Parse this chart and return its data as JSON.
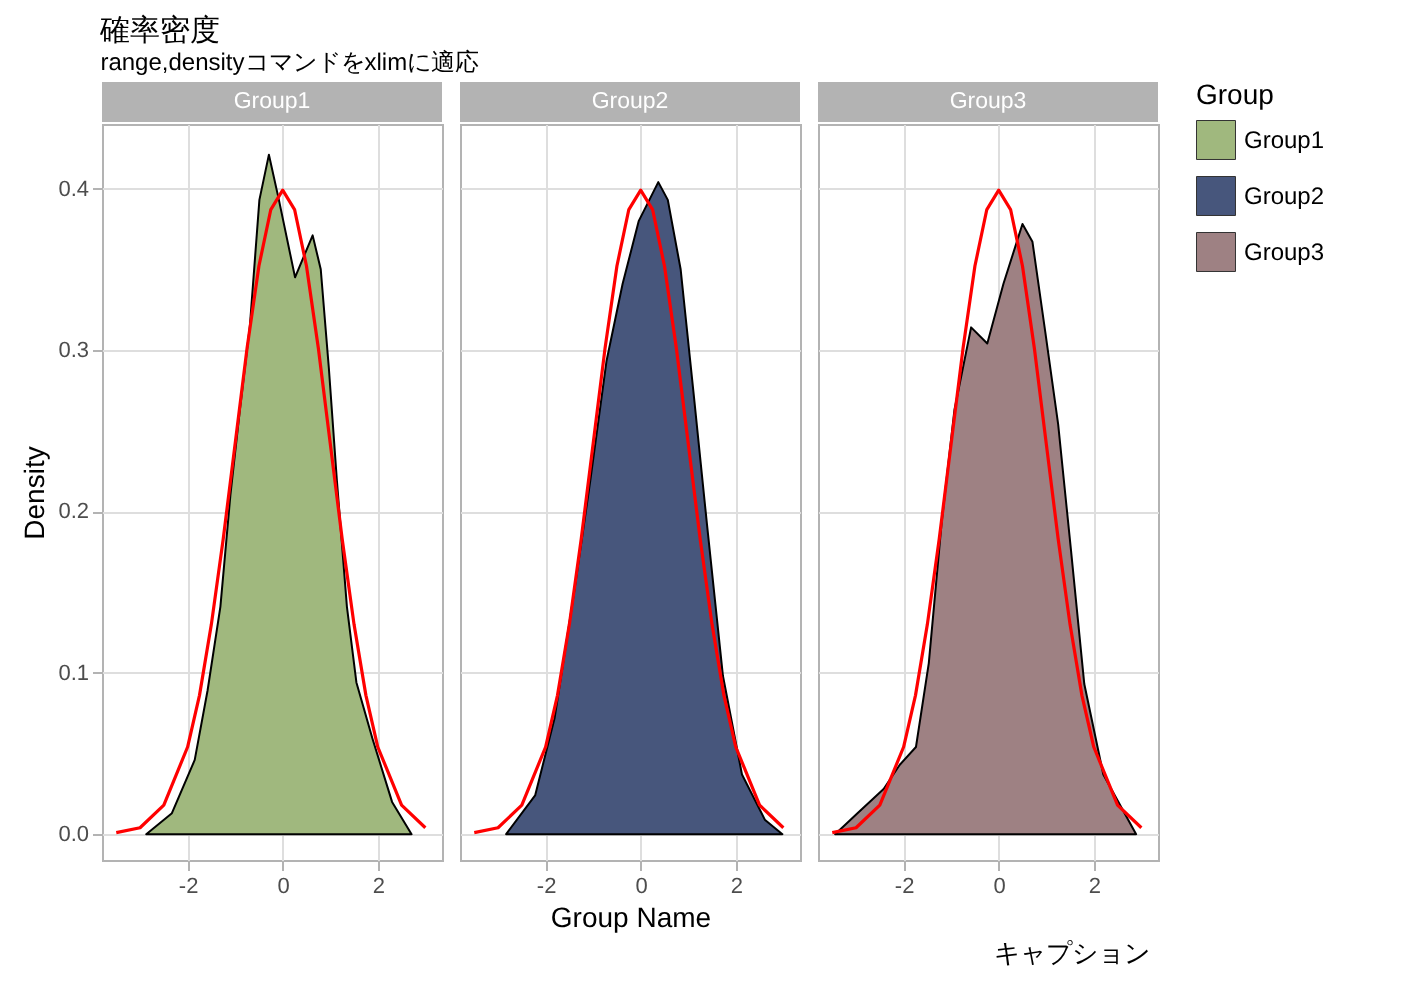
{
  "chart_data": [
    {
      "type": "area",
      "title": "確率密度",
      "subtitle": "range,densityコマンドをxlimに適応",
      "ylabel": "Density",
      "xlim": [
        -3.8,
        3.35
      ],
      "ylim": [
        -0.016,
        0.44
      ],
      "xticks": [
        -2,
        0,
        2
      ],
      "yticks": [
        {
          "value": 0,
          "label": "0.0"
        },
        0.1,
        0.2,
        0.3,
        0.4
      ],
      "grid": true,
      "series": [
        {
          "name": "Group1",
          "color": "#a0b87e",
          "x": [
            -2.87,
            -2.33,
            -1.85,
            -1.58,
            -1.31,
            -1.1,
            -0.9,
            -0.69,
            -0.49,
            -0.29,
            -0.08,
            0.26,
            0.63,
            0.8,
            0.97,
            1.14,
            1.35,
            1.55,
            1.89,
            2.3,
            2.71
          ],
          "values": [
            0,
            0.013,
            0.046,
            0.089,
            0.141,
            0.21,
            0.263,
            0.315,
            0.393,
            0.421,
            0.393,
            0.345,
            0.371,
            0.35,
            0.289,
            0.219,
            0.141,
            0.094,
            0.059,
            0.02,
            0
          ]
        },
        {
          "type": "line",
          "color": "#ff0000",
          "x": [
            -3.5,
            -3.0,
            -2.5,
            -2.0,
            -1.75,
            -1.5,
            -1.25,
            -1.0,
            -0.75,
            -0.5,
            -0.25,
            0,
            0.25,
            0.5,
            0.75,
            1.0,
            1.25,
            1.5,
            1.75,
            2.0,
            2.5,
            3.0
          ],
          "values": [
            0.001,
            0.004,
            0.018,
            0.054,
            0.086,
            0.13,
            0.183,
            0.242,
            0.301,
            0.352,
            0.387,
            0.399,
            0.387,
            0.352,
            0.301,
            0.242,
            0.183,
            0.13,
            0.086,
            0.054,
            0.018,
            0.004
          ]
        }
      ]
    },
    {
      "type": "area",
      "xlabel": "Group Name",
      "xlim": [
        -3.8,
        3.35
      ],
      "ylim": [
        -0.016,
        0.44
      ],
      "xticks": [
        -2,
        0,
        2
      ],
      "yticks": [
        0,
        0.1,
        0.2,
        0.3,
        0.4
      ],
      "grid": true,
      "tick_labels": "x",
      "series": [
        {
          "name": "Group2",
          "color": "#47567c",
          "x": [
            -2.83,
            -2.22,
            -1.81,
            -1.4,
            -1.06,
            -0.72,
            -0.38,
            -0.04,
            0.37,
            0.57,
            0.84,
            1.12,
            1.39,
            1.73,
            2.13,
            2.61,
            2.98
          ],
          "values": [
            0,
            0.024,
            0.072,
            0.15,
            0.219,
            0.293,
            0.341,
            0.38,
            0.404,
            0.393,
            0.35,
            0.271,
            0.193,
            0.098,
            0.037,
            0.009,
            0
          ]
        },
        {
          "type": "line",
          "color": "#ff0000",
          "x": [
            -3.5,
            -3.0,
            -2.5,
            -2.0,
            -1.75,
            -1.5,
            -1.25,
            -1.0,
            -0.75,
            -0.5,
            -0.25,
            0,
            0.25,
            0.5,
            0.75,
            1.0,
            1.25,
            1.5,
            1.75,
            2.0,
            2.5,
            3.0
          ],
          "values": [
            0.001,
            0.004,
            0.018,
            0.054,
            0.086,
            0.13,
            0.183,
            0.242,
            0.301,
            0.352,
            0.387,
            0.399,
            0.387,
            0.352,
            0.301,
            0.242,
            0.183,
            0.13,
            0.086,
            0.054,
            0.018,
            0.004
          ]
        }
      ]
    },
    {
      "type": "area",
      "legend_title": "Group",
      "legend": "right",
      "annotations": [
        "キャプション"
      ],
      "xlim": [
        -3.8,
        3.35
      ],
      "ylim": [
        -0.016,
        0.44
      ],
      "xticks": [
        -2,
        0,
        2
      ],
      "yticks": [
        0,
        0.1,
        0.2,
        0.3,
        0.4
      ],
      "grid": true,
      "tick_labels": "x",
      "series": [
        {
          "name": "Group3",
          "color": "#9e8183",
          "x": [
            -3.44,
            -2.97,
            -2.42,
            -2.08,
            -1.74,
            -1.47,
            -1.2,
            -0.93,
            -0.58,
            -0.24,
            0.1,
            0.5,
            0.71,
            0.98,
            1.25,
            1.52,
            1.8,
            2.2,
            2.89
          ],
          "values": [
            0,
            0.013,
            0.028,
            0.043,
            0.054,
            0.106,
            0.193,
            0.263,
            0.314,
            0.304,
            0.341,
            0.378,
            0.367,
            0.311,
            0.254,
            0.176,
            0.093,
            0.037,
            0
          ]
        },
        {
          "type": "line",
          "color": "#ff0000",
          "x": [
            -3.5,
            -3.0,
            -2.5,
            -2.0,
            -1.75,
            -1.5,
            -1.25,
            -1.0,
            -0.75,
            -0.5,
            -0.25,
            0,
            0.25,
            0.5,
            0.75,
            1.0,
            1.25,
            1.5,
            1.75,
            2.0,
            2.5,
            3.0
          ],
          "values": [
            0.001,
            0.004,
            0.018,
            0.054,
            0.086,
            0.13,
            0.183,
            0.242,
            0.301,
            0.352,
            0.387,
            0.399,
            0.387,
            0.352,
            0.301,
            0.242,
            0.183,
            0.13,
            0.086,
            0.054,
            0.018,
            0.004
          ]
        }
      ]
    }
  ]
}
